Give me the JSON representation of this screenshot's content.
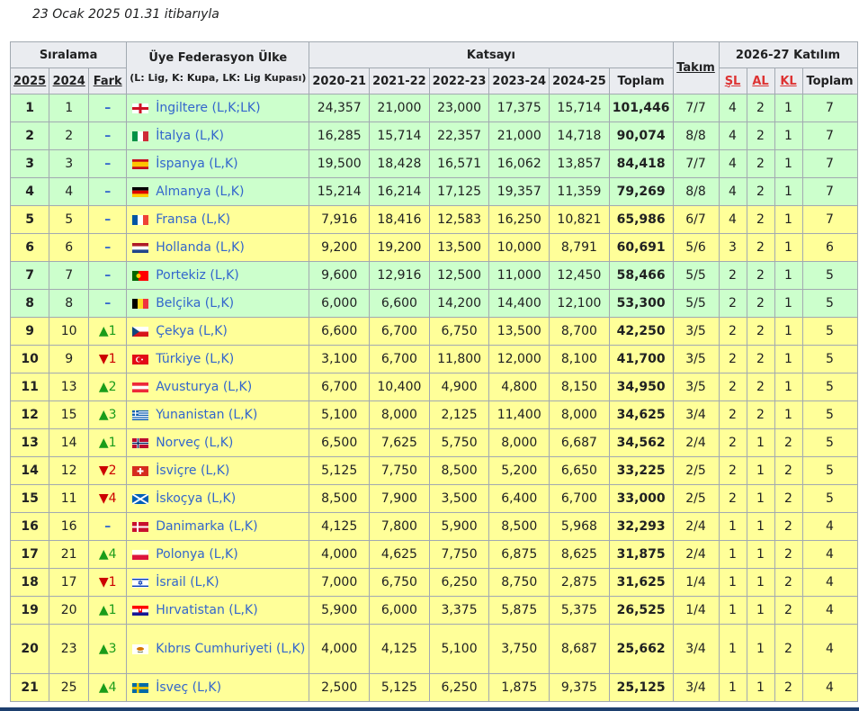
{
  "caption": "23 Ocak 2025 01.31 itibarıyla",
  "headers": {
    "siralama": "Sıralama",
    "uye": "Üye Federasyon Ülke",
    "uye_sub": "(L: Lig, K: Kupa, LK: Lig Kupası)",
    "katsayi": "Katsayı",
    "takim": "Takım",
    "katilim": "2026-27 Katılım",
    "y2025": "2025",
    "y2024": "2024",
    "fark": "Fark",
    "s1": "2020-21",
    "s2": "2021-22",
    "s3": "2022-23",
    "s4": "2023-24",
    "s5": "2024-25",
    "toplam": "Toplam",
    "sl": "ŞL",
    "al": "AL",
    "kl": "KL",
    "toplam2": "Toplam"
  },
  "rows": [
    {
      "r25": "1",
      "r24": "1",
      "fark": "–",
      "country": "İngiltere",
      "lk": "(L,K;LK)",
      "flag": "eng",
      "c": [
        "24,357",
        "21,000",
        "23,000",
        "17,375",
        "15,714"
      ],
      "total": "101,446",
      "takim": "7/7",
      "sl": "4",
      "al": "2",
      "kl": "1",
      "tp": "7",
      "color": "green"
    },
    {
      "r25": "2",
      "r24": "2",
      "fark": "–",
      "country": "İtalya",
      "lk": "(L,K)",
      "flag": "ita",
      "c": [
        "16,285",
        "15,714",
        "22,357",
        "21,000",
        "14,718"
      ],
      "total": "90,074",
      "takim": "8/8",
      "sl": "4",
      "al": "2",
      "kl": "1",
      "tp": "7",
      "color": "green"
    },
    {
      "r25": "3",
      "r24": "3",
      "fark": "–",
      "country": "İspanya",
      "lk": "(L,K)",
      "flag": "esp",
      "c": [
        "19,500",
        "18,428",
        "16,571",
        "16,062",
        "13,857"
      ],
      "total": "84,418",
      "takim": "7/7",
      "sl": "4",
      "al": "2",
      "kl": "1",
      "tp": "7",
      "color": "green"
    },
    {
      "r25": "4",
      "r24": "4",
      "fark": "–",
      "country": "Almanya",
      "lk": "(L,K)",
      "flag": "ger",
      "c": [
        "15,214",
        "16,214",
        "17,125",
        "19,357",
        "11,359"
      ],
      "total": "79,269",
      "takim": "8/8",
      "sl": "4",
      "al": "2",
      "kl": "1",
      "tp": "7",
      "color": "green"
    },
    {
      "r25": "5",
      "r24": "5",
      "fark": "–",
      "country": "Fransa",
      "lk": "(L,K)",
      "flag": "fra",
      "c": [
        "7,916",
        "18,416",
        "12,583",
        "16,250",
        "10,821"
      ],
      "total": "65,986",
      "takim": "6/7",
      "sl": "4",
      "al": "2",
      "kl": "1",
      "tp": "7",
      "color": "yellow"
    },
    {
      "r25": "6",
      "r24": "6",
      "fark": "–",
      "country": "Hollanda",
      "lk": "(L,K)",
      "flag": "ned",
      "c": [
        "9,200",
        "19,200",
        "13,500",
        "10,000",
        "8,791"
      ],
      "total": "60,691",
      "takim": "5/6",
      "sl": "3",
      "al": "2",
      "kl": "1",
      "tp": "6",
      "color": "yellow"
    },
    {
      "r25": "7",
      "r24": "7",
      "fark": "–",
      "country": "Portekiz",
      "lk": "(L,K)",
      "flag": "por",
      "c": [
        "9,600",
        "12,916",
        "12,500",
        "11,000",
        "12,450"
      ],
      "total": "58,466",
      "takim": "5/5",
      "sl": "2",
      "al": "2",
      "kl": "1",
      "tp": "5",
      "color": "green"
    },
    {
      "r25": "8",
      "r24": "8",
      "fark": "–",
      "country": "Belçika",
      "lk": "(L,K)",
      "flag": "bel",
      "c": [
        "6,000",
        "6,600",
        "14,200",
        "14,400",
        "12,100"
      ],
      "total": "53,300",
      "takim": "5/5",
      "sl": "2",
      "al": "2",
      "kl": "1",
      "tp": "5",
      "color": "green"
    },
    {
      "r25": "9",
      "r24": "10",
      "fark": "▲1",
      "dir": "up",
      "country": "Çekya",
      "lk": "(L,K)",
      "flag": "cze",
      "c": [
        "6,600",
        "6,700",
        "6,750",
        "13,500",
        "8,700"
      ],
      "total": "42,250",
      "takim": "3/5",
      "sl": "2",
      "al": "2",
      "kl": "1",
      "tp": "5",
      "color": "yellow"
    },
    {
      "r25": "10",
      "r24": "9",
      "fark": "▼1",
      "dir": "down",
      "country": "Türkiye",
      "lk": "(L,K)",
      "flag": "tur",
      "c": [
        "3,100",
        "6,700",
        "11,800",
        "12,000",
        "8,100"
      ],
      "total": "41,700",
      "takim": "3/5",
      "sl": "2",
      "al": "2",
      "kl": "1",
      "tp": "5",
      "color": "yellow"
    },
    {
      "r25": "11",
      "r24": "13",
      "fark": "▲2",
      "dir": "up",
      "country": "Avusturya",
      "lk": "(L,K)",
      "flag": "aut",
      "c": [
        "6,700",
        "10,400",
        "4,900",
        "4,800",
        "8,150"
      ],
      "total": "34,950",
      "takim": "3/5",
      "sl": "2",
      "al": "2",
      "kl": "1",
      "tp": "5",
      "color": "yellow"
    },
    {
      "r25": "12",
      "r24": "15",
      "fark": "▲3",
      "dir": "up",
      "country": "Yunanistan",
      "lk": "(L,K)",
      "flag": "gre",
      "c": [
        "5,100",
        "8,000",
        "2,125",
        "11,400",
        "8,000"
      ],
      "total": "34,625",
      "takim": "3/4",
      "sl": "2",
      "al": "2",
      "kl": "1",
      "tp": "5",
      "color": "yellow"
    },
    {
      "r25": "13",
      "r24": "14",
      "fark": "▲1",
      "dir": "up",
      "country": "Norveç",
      "lk": "(L,K)",
      "flag": "nor",
      "c": [
        "6,500",
        "7,625",
        "5,750",
        "8,000",
        "6,687"
      ],
      "total": "34,562",
      "takim": "2/4",
      "sl": "2",
      "al": "1",
      "kl": "2",
      "tp": "5",
      "color": "yellow"
    },
    {
      "r25": "14",
      "r24": "12",
      "fark": "▼2",
      "dir": "down",
      "country": "İsviçre",
      "lk": "(L,K)",
      "flag": "sui",
      "c": [
        "5,125",
        "7,750",
        "8,500",
        "5,200",
        "6,650"
      ],
      "total": "33,225",
      "takim": "2/5",
      "sl": "2",
      "al": "1",
      "kl": "2",
      "tp": "5",
      "color": "yellow"
    },
    {
      "r25": "15",
      "r24": "11",
      "fark": "▼4",
      "dir": "down",
      "country": "İskoçya",
      "lk": "(L,K)",
      "flag": "sco",
      "c": [
        "8,500",
        "7,900",
        "3,500",
        "6,400",
        "6,700"
      ],
      "total": "33,000",
      "takim": "2/5",
      "sl": "2",
      "al": "1",
      "kl": "2",
      "tp": "5",
      "color": "yellow"
    },
    {
      "r25": "16",
      "r24": "16",
      "fark": "–",
      "country": "Danimarka",
      "lk": "(L,K)",
      "flag": "den",
      "c": [
        "4,125",
        "7,800",
        "5,900",
        "8,500",
        "5,968"
      ],
      "total": "32,293",
      "takim": "2/4",
      "sl": "1",
      "al": "1",
      "kl": "2",
      "tp": "4",
      "color": "yellow"
    },
    {
      "r25": "17",
      "r24": "21",
      "fark": "▲4",
      "dir": "up",
      "country": "Polonya",
      "lk": "(L,K)",
      "flag": "pol",
      "c": [
        "4,000",
        "4,625",
        "7,750",
        "6,875",
        "8,625"
      ],
      "total": "31,875",
      "takim": "2/4",
      "sl": "1",
      "al": "1",
      "kl": "2",
      "tp": "4",
      "color": "yellow"
    },
    {
      "r25": "18",
      "r24": "17",
      "fark": "▼1",
      "dir": "down",
      "country": "İsrail",
      "lk": "(L,K)",
      "flag": "isr",
      "c": [
        "7,000",
        "6,750",
        "6,250",
        "8,750",
        "2,875"
      ],
      "total": "31,625",
      "takim": "1/4",
      "sl": "1",
      "al": "1",
      "kl": "2",
      "tp": "4",
      "color": "yellow"
    },
    {
      "r25": "19",
      "r24": "20",
      "fark": "▲1",
      "dir": "up",
      "country": "Hırvatistan",
      "lk": "(L,K)",
      "flag": "cro",
      "c": [
        "5,900",
        "6,000",
        "3,375",
        "5,875",
        "5,375"
      ],
      "total": "26,525",
      "takim": "1/4",
      "sl": "1",
      "al": "1",
      "kl": "2",
      "tp": "4",
      "color": "yellow"
    },
    {
      "r25": "20",
      "r24": "23",
      "fark": "▲3",
      "dir": "up",
      "country": "Kıbrıs Cumhuriyeti",
      "lk": "(L,K)",
      "flag": "cyp",
      "tall": true,
      "c": [
        "4,000",
        "4,125",
        "5,100",
        "3,750",
        "8,687"
      ],
      "total": "25,662",
      "takim": "3/4",
      "sl": "1",
      "al": "1",
      "kl": "2",
      "tp": "4",
      "color": "yellow"
    },
    {
      "r25": "21",
      "r24": "25",
      "fark": "▲4",
      "dir": "up",
      "country": "İsveç",
      "lk": "(L,K)",
      "flag": "swe",
      "c": [
        "2,500",
        "5,125",
        "6,250",
        "1,875",
        "9,375"
      ],
      "total": "25,125",
      "takim": "3/4",
      "sl": "1",
      "al": "1",
      "kl": "2",
      "tp": "4",
      "color": "yellow"
    }
  ]
}
